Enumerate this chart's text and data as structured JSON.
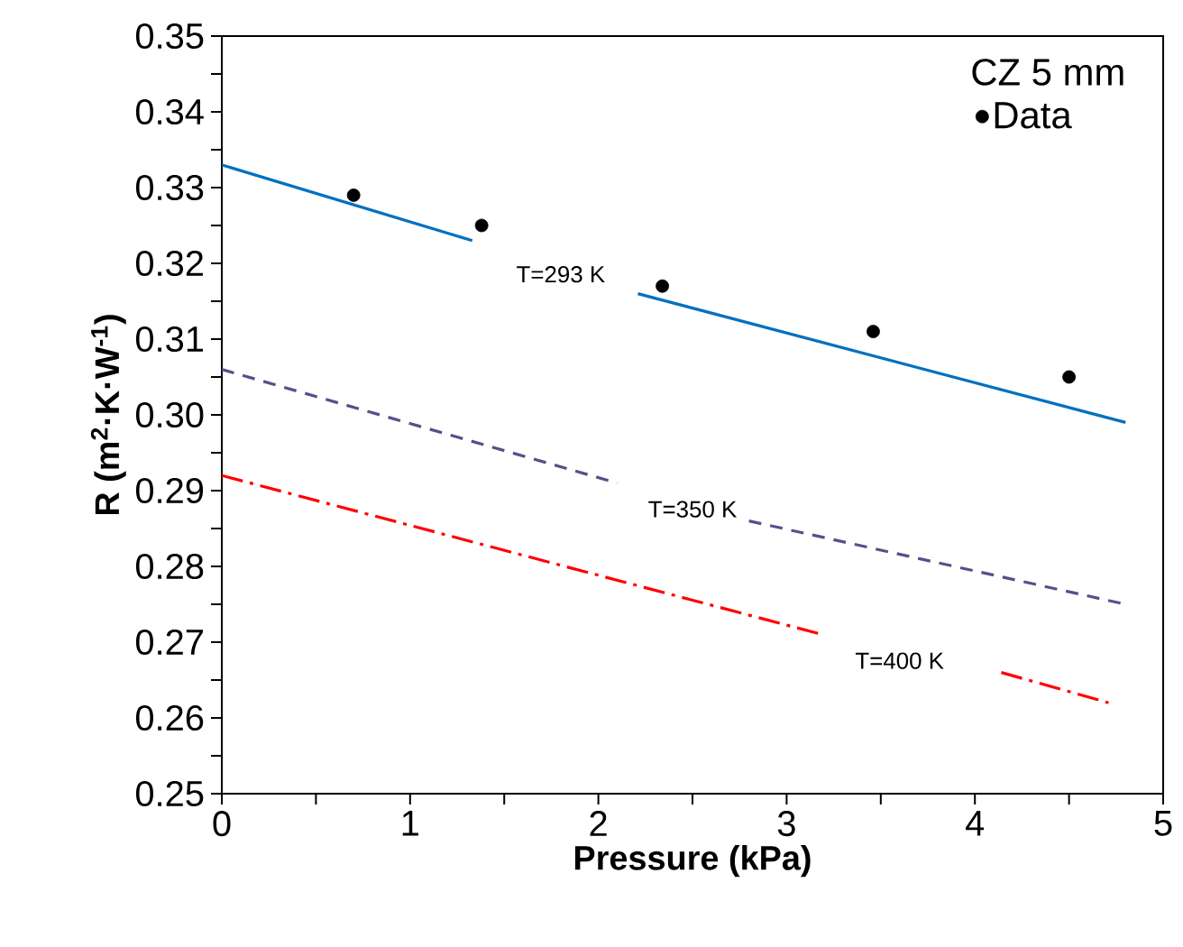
{
  "chart_data": {
    "type": "line",
    "xlabel": "Pressure (kPa)",
    "ylabel": "R (m$^{2}$·K·W$^{-1}$)",
    "legend_title": "CZ 5 mm",
    "legend": "top right",
    "xlim": [
      0,
      5
    ],
    "ylim": [
      0.25,
      0.35
    ],
    "xticks": [
      0,
      1,
      2,
      3,
      4,
      5
    ],
    "yticks": [
      0.25,
      0.26,
      0.27,
      0.28,
      0.29,
      {
        "value": 0.3,
        "label": "0.30"
      },
      0.31,
      0.32,
      0.33,
      0.34,
      0.35
    ],
    "series": [
      {
        "name": "Data",
        "type": "scatter",
        "marker": "circle",
        "color": "#000000",
        "x": [
          0.7,
          1.38,
          2.34,
          3.46,
          4.5
        ],
        "values": [
          0.329,
          0.325,
          0.317,
          0.311,
          0.305
        ]
      },
      {
        "line_style": "solid",
        "marker": "none",
        "color": "#0070c0",
        "x": [
          0,
          1.33,
          1.8,
          2.21,
          4.8
        ],
        "values": [
          0.333,
          0.323,
          null,
          0.316,
          0.299
        ]
      },
      {
        "line_style": "dashed",
        "marker": "none",
        "color": "#5f4b8b",
        "x": [
          0,
          2.1,
          2.5,
          2.8,
          4.8
        ],
        "values": [
          0.306,
          0.291,
          null,
          0.286,
          0.275
        ]
      },
      {
        "line_style": "dashdot",
        "marker": "none",
        "color": "#ff0000",
        "x": [
          0,
          3.19,
          3.6,
          4.14,
          4.71
        ],
        "values": [
          0.292,
          0.271,
          null,
          0.266,
          0.262
        ]
      }
    ],
    "annotations": [
      "T=293 K",
      "T=350 K",
      "T=400 K"
    ]
  }
}
